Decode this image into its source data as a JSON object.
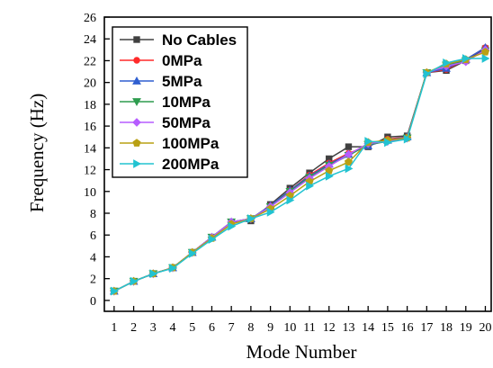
{
  "chart_data": {
    "type": "line",
    "xlabel": "Mode Number",
    "ylabel": "Frequency (Hz)",
    "x": [
      1,
      2,
      3,
      4,
      5,
      6,
      7,
      8,
      9,
      10,
      11,
      12,
      13,
      14,
      15,
      16,
      17,
      18,
      19,
      20
    ],
    "xlim": [
      0.5,
      20.3
    ],
    "ylim": [
      -1,
      26
    ],
    "yticks": [
      0,
      2,
      4,
      6,
      8,
      10,
      12,
      14,
      16,
      18,
      20,
      22,
      24,
      26
    ],
    "legend_position": "top-left",
    "series": [
      {
        "name": "No Cables",
        "color": "#404040",
        "marker": "square",
        "values": [
          0.85,
          1.75,
          2.45,
          3.0,
          4.4,
          5.8,
          7.2,
          7.3,
          8.8,
          10.3,
          11.7,
          13.0,
          14.1,
          14.1,
          15.0,
          15.1,
          20.9,
          21.1,
          22.0,
          23.1
        ]
      },
      {
        "name": "0MPa",
        "color": "#ff2a2a",
        "marker": "circle",
        "values": [
          0.85,
          1.75,
          2.45,
          3.0,
          4.4,
          5.8,
          7.2,
          7.5,
          8.7,
          10.1,
          11.5,
          12.6,
          13.5,
          14.2,
          14.8,
          15.0,
          20.9,
          21.2,
          22.1,
          23.2
        ]
      },
      {
        "name": "5MPa",
        "color": "#2f5fd0",
        "marker": "triangle-up",
        "values": [
          0.85,
          1.75,
          2.45,
          3.0,
          4.4,
          5.8,
          7.2,
          7.5,
          8.7,
          10.1,
          11.4,
          12.5,
          13.4,
          14.2,
          14.7,
          15.0,
          20.9,
          21.3,
          22.1,
          23.2
        ]
      },
      {
        "name": "10MPa",
        "color": "#2e9c4f",
        "marker": "triangle-down",
        "values": [
          0.85,
          1.75,
          2.45,
          3.0,
          4.4,
          5.8,
          7.2,
          7.5,
          8.6,
          10.0,
          11.3,
          12.4,
          13.3,
          14.3,
          14.6,
          14.9,
          20.9,
          21.6,
          22.0,
          22.9
        ]
      },
      {
        "name": "50MPa",
        "color": "#b65cff",
        "marker": "diamond",
        "values": [
          0.85,
          1.75,
          2.45,
          3.0,
          4.4,
          5.8,
          7.2,
          7.5,
          8.6,
          9.9,
          11.2,
          12.3,
          13.4,
          14.4,
          14.6,
          14.9,
          20.9,
          21.5,
          21.9,
          23.0
        ]
      },
      {
        "name": "100MPa",
        "color": "#b9a014",
        "marker": "pentagon",
        "values": [
          0.85,
          1.75,
          2.45,
          3.0,
          4.4,
          5.7,
          7.0,
          7.5,
          8.4,
          9.6,
          10.9,
          11.9,
          12.7,
          14.5,
          14.7,
          14.9,
          20.9,
          21.7,
          22.1,
          22.8
        ]
      },
      {
        "name": "200MPa",
        "color": "#22c3d1",
        "marker": "triangle-right",
        "values": [
          0.85,
          1.75,
          2.45,
          2.95,
          4.3,
          5.6,
          6.8,
          7.5,
          8.1,
          9.2,
          10.5,
          11.4,
          12.1,
          14.6,
          14.5,
          14.8,
          20.8,
          21.8,
          22.2,
          22.2
        ]
      }
    ]
  }
}
